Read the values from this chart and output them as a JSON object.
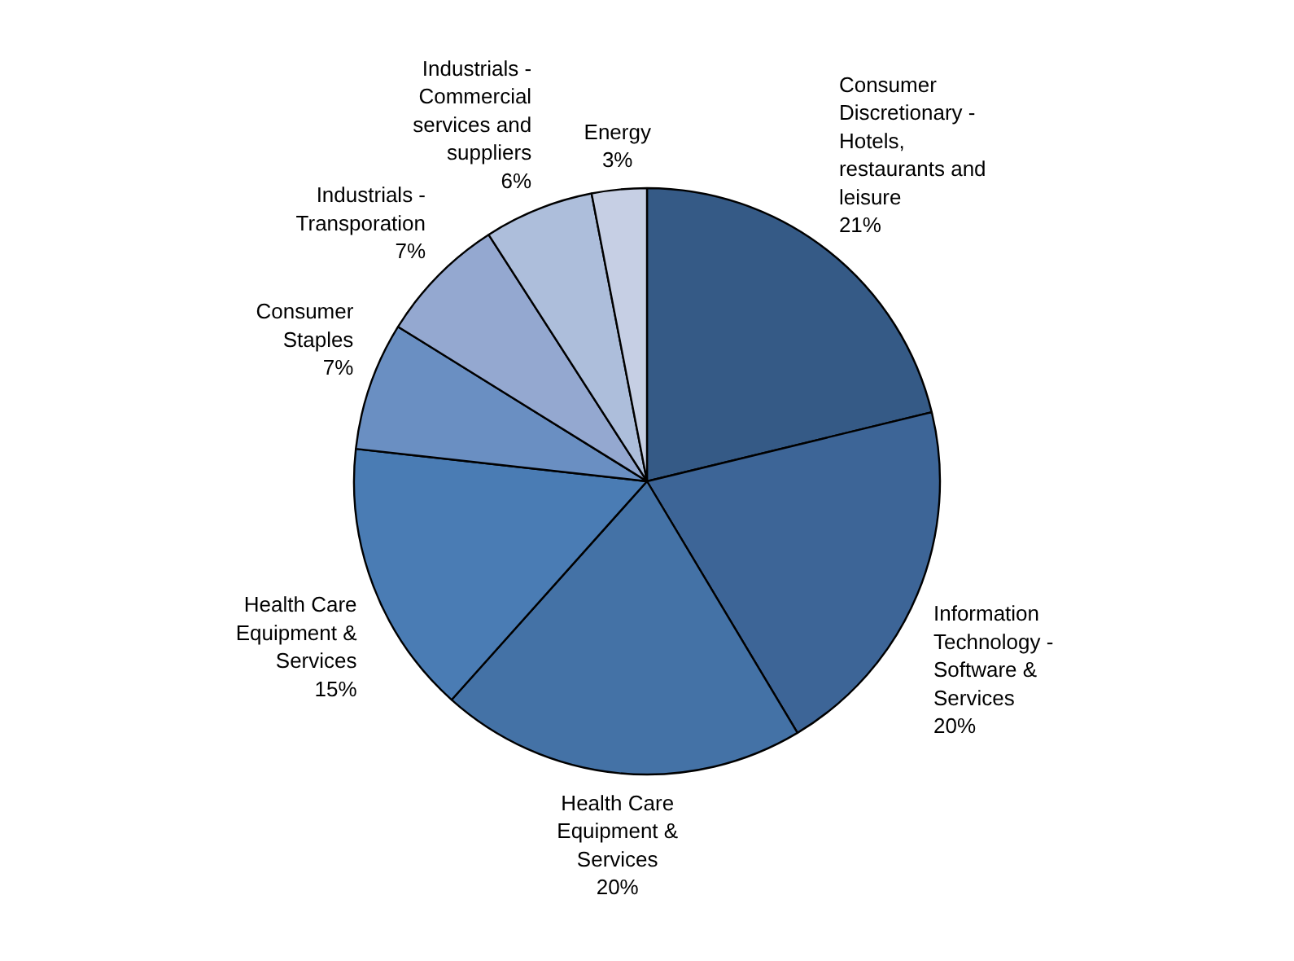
{
  "chart_data": {
    "type": "pie",
    "categories": [
      "Consumer Discretionary - Hotels, restaurants and leisure",
      "Information Technology - Software & Services",
      "Health Care Equipment & Services",
      "Health Care Equipment & Services",
      "Consumer Staples",
      "Industrials - Transporation",
      "Industrials - Commercial services and suppliers",
      "Energy"
    ],
    "values": [
      21,
      20,
      20,
      15,
      7,
      7,
      6,
      3
    ],
    "colors": [
      "#355a86",
      "#3d6597",
      "#4472a6",
      "#4a7cb4",
      "#6a8fc2",
      "#94a8d0",
      "#adbedb",
      "#c6cfe4"
    ],
    "value_labels": [
      "21%",
      "20%",
      "20%",
      "15%",
      "7%",
      "7%",
      "6%",
      "3%"
    ]
  }
}
